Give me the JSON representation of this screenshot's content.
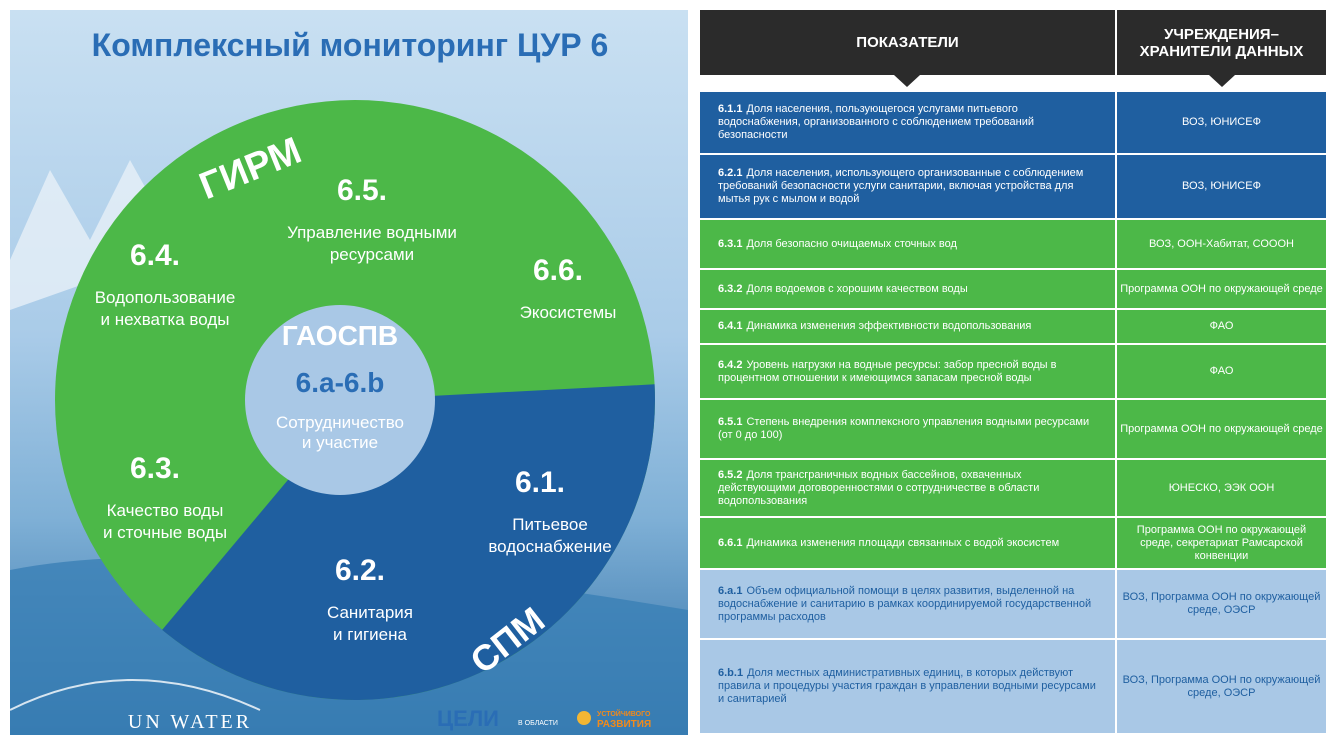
{
  "title": "Комплексный мониторинг ЦУР 6",
  "ring_labels": [
    "ГИРМ",
    "СПМ"
  ],
  "center": {
    "label": "ГАОСПВ",
    "code": "6.a-6.b",
    "lines": [
      "Сотрудничество",
      "и участие"
    ]
  },
  "segments": [
    {
      "code": "6.5.",
      "lines": [
        "Управление водными",
        "ресурсами"
      ]
    },
    {
      "code": "6.4.",
      "lines": [
        "Водопользование",
        "и нехватка воды"
      ]
    },
    {
      "code": "6.6.",
      "lines": [
        "Экосистемы"
      ]
    },
    {
      "code": "6.3.",
      "lines": [
        "Качество воды",
        "и сточные воды"
      ]
    },
    {
      "code": "6.1.",
      "lines": [
        "Питьевое",
        "водоснабжение"
      ]
    },
    {
      "code": "6.2.",
      "lines": [
        "Санитария",
        "и гигиена"
      ]
    }
  ],
  "logos": {
    "un_water": "UN WATER",
    "goals": "ЦЕЛИ",
    "goals_small": "В ОБЛАСТИ",
    "sd_top": "УСТОЙЧИВОГО",
    "sd_bottom": "РАЗВИТИЯ"
  },
  "table": {
    "headers": [
      "ПОКАЗАТЕЛИ",
      "УЧРЕЖДЕНИЯ– ХРАНИТЕЛИ ДАННЫХ"
    ],
    "rows": [
      {
        "code": "6.1.1",
        "text": "Доля населения, пользующегося услугами питьевого водоснабжения, организованного с соблюдением требований безопасности",
        "custodian": "ВОЗ, ЮНИСЕФ"
      },
      {
        "code": "6.2.1",
        "text": "Доля населения, использующего организованные с соблюдением требований безопасности услуги санитарии, включая устройства для мытья рук с мылом и водой",
        "custodian": "ВОЗ, ЮНИСЕФ"
      },
      {
        "code": "6.3.1",
        "text": "Доля безопасно очищаемых сточных вод",
        "custodian": "ВОЗ, ООН-Хабитат, СОООН"
      },
      {
        "code": "6.3.2",
        "text": "Доля водоемов с хорошим качеством воды",
        "custodian": "Программа ООН по окружающей среде"
      },
      {
        "code": "6.4.1",
        "text": "Динамика изменения эффективности водопользования",
        "custodian": "ФАО"
      },
      {
        "code": "6.4.2",
        "text": "Уровень нагрузки на водные ресурсы: забор пресной воды в процентном отношении к имеющимся запасам пресной воды",
        "custodian": "ФАО"
      },
      {
        "code": "6.5.1",
        "text": "Степень внедрения комплексного управления водными ресурсами (от 0 до 100)",
        "custodian": "Программа ООН по окружающей среде"
      },
      {
        "code": "6.5.2",
        "text": "Доля трансграничных водных бассейнов, охваченных действующими договоренностями о сотрудничестве в области водопользования",
        "custodian": "ЮНЕСКО, ЭЭК ООН"
      },
      {
        "code": "6.6.1",
        "text": "Динамика изменения площади связанных с водой экосистем",
        "custodian": "Программа ООН по окружающей среде, секретариат Рамсарской конвенции"
      },
      {
        "code": "6.a.1",
        "text": "Объем официальной помощи в целях развития, выделенной на водоснабжение и санитарию в рамках координируемой государственной программы расходов",
        "custodian": "ВОЗ, Программа ООН по окружающей среде, ОЭСР"
      },
      {
        "code": "6.b.1",
        "text": "Доля местных административных единиц, в которых действуют правила и процедуры участия граждан в управлении водными ресурсами и санитарией",
        "custodian": "ВОЗ, Программа ООН по окружающей среде, ОЭСР"
      }
    ]
  }
}
